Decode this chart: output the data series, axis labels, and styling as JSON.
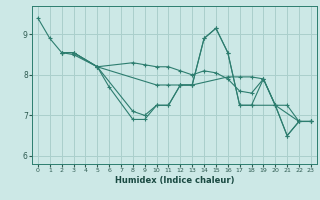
{
  "xlabel": "Humidex (Indice chaleur)",
  "bg_color": "#cce8e6",
  "grid_color": "#aacfcc",
  "line_color": "#2d7d6f",
  "xlim": [
    -0.5,
    23.5
  ],
  "ylim": [
    5.8,
    9.7
  ],
  "yticks": [
    6,
    7,
    8,
    9
  ],
  "xticks": [
    0,
    1,
    2,
    3,
    4,
    5,
    6,
    7,
    8,
    9,
    10,
    11,
    12,
    13,
    14,
    15,
    16,
    17,
    18,
    19,
    20,
    21,
    22,
    23
  ],
  "lines": [
    {
      "x": [
        0,
        1,
        2,
        3,
        5,
        6,
        8,
        9,
        10,
        11,
        12,
        13,
        14,
        15,
        16,
        17,
        18,
        20,
        21,
        22,
        23
      ],
      "y": [
        9.4,
        8.9,
        8.55,
        8.55,
        8.2,
        7.7,
        6.9,
        6.9,
        7.25,
        7.25,
        7.75,
        7.75,
        8.9,
        9.15,
        8.55,
        7.25,
        7.25,
        7.25,
        6.5,
        6.85,
        6.85
      ]
    },
    {
      "x": [
        2,
        3,
        5,
        10,
        11,
        12,
        13,
        16,
        17,
        18,
        19,
        20,
        22,
        23
      ],
      "y": [
        8.55,
        8.55,
        8.2,
        7.75,
        7.75,
        7.75,
        7.75,
        7.95,
        7.95,
        7.95,
        7.9,
        7.25,
        6.85,
        6.85
      ]
    },
    {
      "x": [
        2,
        3,
        5,
        8,
        9,
        10,
        11,
        12,
        13,
        14,
        15,
        16,
        17,
        18,
        19,
        20,
        21,
        22,
        23
      ],
      "y": [
        8.55,
        8.55,
        8.2,
        7.1,
        7.0,
        7.25,
        7.25,
        7.75,
        7.75,
        8.9,
        9.15,
        8.55,
        7.25,
        7.25,
        7.9,
        7.25,
        6.5,
        6.85,
        6.85
      ]
    },
    {
      "x": [
        2,
        3,
        5,
        8,
        9,
        10,
        11,
        12,
        13,
        14,
        15,
        16,
        17,
        18,
        19,
        20,
        21,
        22,
        23
      ],
      "y": [
        8.55,
        8.5,
        8.2,
        8.3,
        8.25,
        8.2,
        8.2,
        8.1,
        8.0,
        8.1,
        8.05,
        7.9,
        7.6,
        7.55,
        7.9,
        7.25,
        7.25,
        6.85,
        6.85
      ]
    }
  ]
}
